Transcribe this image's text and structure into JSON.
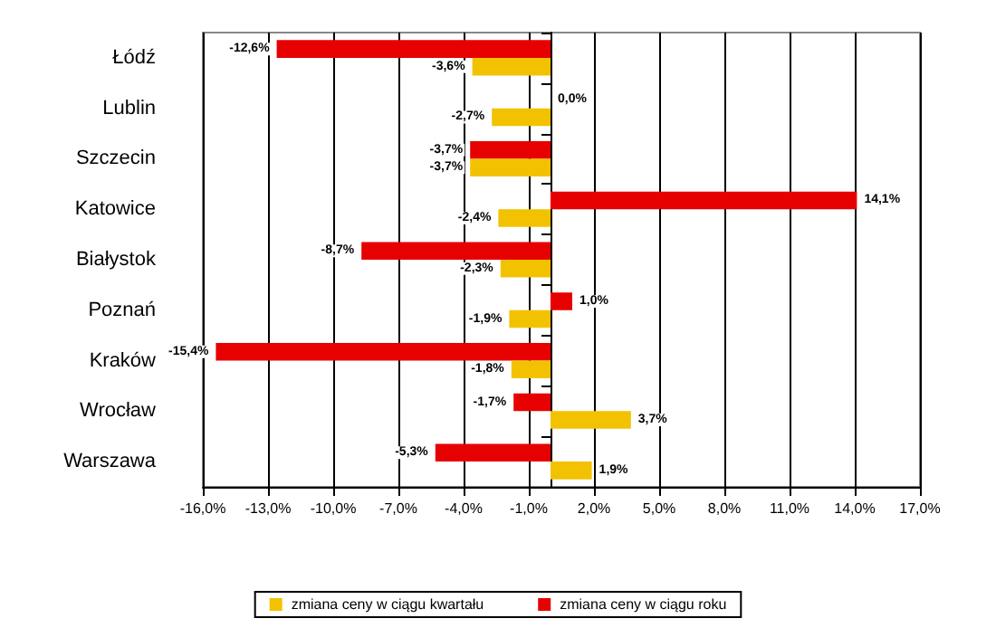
{
  "chart_data": {
    "type": "bar",
    "orientation": "horizontal",
    "categories": [
      "Łódź",
      "Lublin",
      "Szczecin",
      "Katowice",
      "Białystok",
      "Poznań",
      "Kraków",
      "Wrocław",
      "Warszawa"
    ],
    "series": [
      {
        "name": "zmiana ceny w ciągu kwartału",
        "color": "#f2c200",
        "values": [
          -3.6,
          -2.7,
          -3.7,
          -2.4,
          -2.3,
          -1.9,
          -1.8,
          3.7,
          1.9
        ],
        "value_labels": [
          "-3,6%",
          "-2,7%",
          "-3,7%",
          "-2,4%",
          "-2,3%",
          "-1,9%",
          "-1,8%",
          "3,7%",
          "1,9%"
        ]
      },
      {
        "name": "zmiana ceny w ciągu roku",
        "color": "#e60000",
        "values": [
          -12.6,
          0.0,
          -3.7,
          14.1,
          -8.7,
          1.0,
          -15.4,
          -1.7,
          -5.3
        ],
        "value_labels": [
          "-12,6%",
          "0,0%",
          "-3,7%",
          "14,1%",
          "-8,7%",
          "1,0%",
          "-15,4%",
          "-1,7%",
          "-5,3%"
        ]
      }
    ],
    "xlim": [
      -16,
      17
    ],
    "xticks": [
      {
        "value": -16,
        "label": "-16,0%"
      },
      {
        "value": -13,
        "label": "-13,0%"
      },
      {
        "value": -10,
        "label": "-10,0%"
      },
      {
        "value": -7,
        "label": "-7,0%"
      },
      {
        "value": -4,
        "label": "-4,0%"
      },
      {
        "value": -1,
        "label": "-1,0%"
      },
      {
        "value": 2,
        "label": "2,0%"
      },
      {
        "value": 5,
        "label": "5,0%"
      },
      {
        "value": 8,
        "label": "8,0%"
      },
      {
        "value": 11,
        "label": "11,0%"
      },
      {
        "value": 14,
        "label": "14,0%"
      },
      {
        "value": 17,
        "label": "17,0%"
      }
    ],
    "grid": "x",
    "legend": "bottom"
  }
}
